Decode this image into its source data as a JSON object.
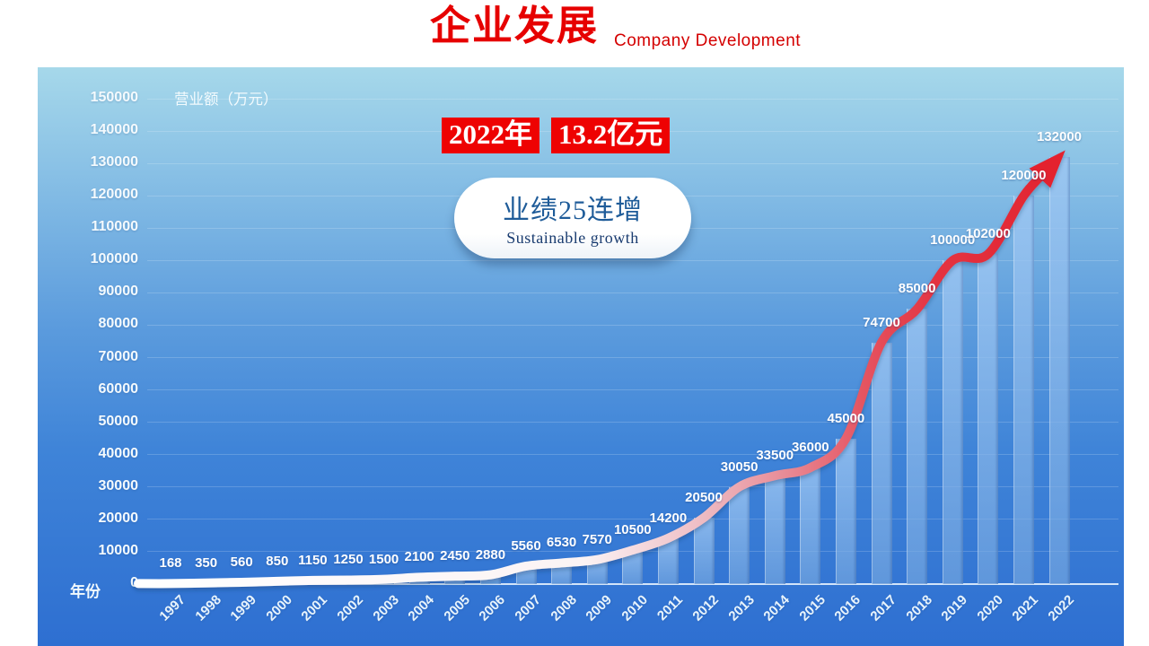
{
  "header": {
    "title": "企业发展",
    "subtitle": "Company Development"
  },
  "colors": {
    "title_red": "#e60000",
    "badge_bg": "#ee0202",
    "badge_text": "#ffffff",
    "arrow_red": "#e4222e",
    "callout_text_blue": "#1f5c99",
    "panel_top_blue": "#a6d8ea",
    "panel_bottom_blue": "#2e6fd1",
    "bar_fill_blue": "#7daade",
    "label_white": "#ffffff"
  },
  "chart_data": {
    "type": "bar",
    "categories": [
      "1997",
      "1998",
      "1999",
      "2000",
      "2001",
      "2002",
      "2003",
      "2004",
      "2005",
      "2006",
      "2007",
      "2008",
      "2009",
      "2010",
      "2011",
      "2012",
      "2013",
      "2014",
      "2015",
      "2016",
      "2017",
      "2018",
      "2019",
      "2020",
      "2021",
      "2022"
    ],
    "values": [
      168,
      350,
      560,
      850,
      1150,
      1250,
      1500,
      2100,
      2450,
      2880,
      5560,
      6530,
      7570,
      10500,
      14200,
      20500,
      30050,
      33500,
      36000,
      45000,
      74700,
      85000,
      100000,
      102000,
      120000,
      132000
    ],
    "ylabel": "营业额（万元）",
    "xlabel": "年份",
    "ylim": [
      0,
      150000
    ],
    "ytick_step": 10000,
    "grid": true,
    "legend": false,
    "data_labels": true,
    "overlay": "smooth trend line over bars, white at 1997 fading to red, ending in large red arrowhead at 2022",
    "annotations": {
      "year_badge": "2022年",
      "amount_badge": "13.2亿元",
      "callout_title": "业绩25连增",
      "callout_subtitle": "Sustainable growth"
    }
  }
}
